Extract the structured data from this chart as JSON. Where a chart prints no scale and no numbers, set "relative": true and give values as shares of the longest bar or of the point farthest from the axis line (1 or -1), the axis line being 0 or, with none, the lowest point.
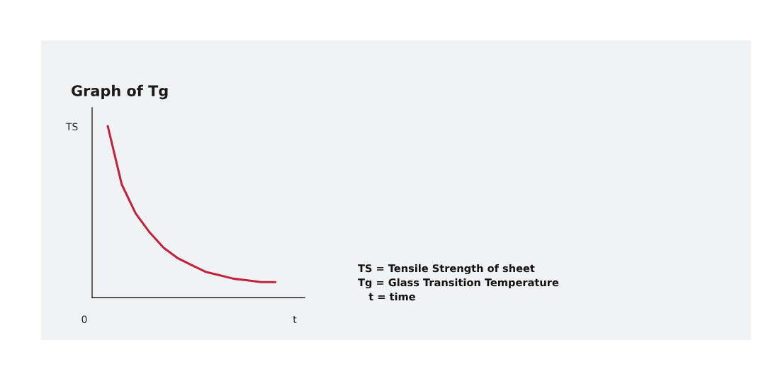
{
  "chart_data": {
    "type": "line",
    "title": "Graph of Tg",
    "xlabel": "t",
    "ylabel": "TS",
    "categories": [
      null,
      null,
      null,
      null,
      null,
      null,
      null,
      null,
      null,
      null,
      null,
      null,
      null
    ],
    "relative": true,
    "series": [
      {
        "color": "#c0243c",
        "values": [
          1,
          0.66,
          0.49,
          0.38,
          0.29,
          0.23,
          0.19,
          0.15,
          0.13,
          0.11,
          0.1,
          0.09,
          0.09
        ]
      }
    ],
    "annotations": [
      "0",
      "TS = Tensile Strength of sheet",
      "Tg = Glass Transition Temperature",
      "   t = time"
    ],
    "legend": false,
    "marker": "none",
    "line_style": "solid"
  }
}
